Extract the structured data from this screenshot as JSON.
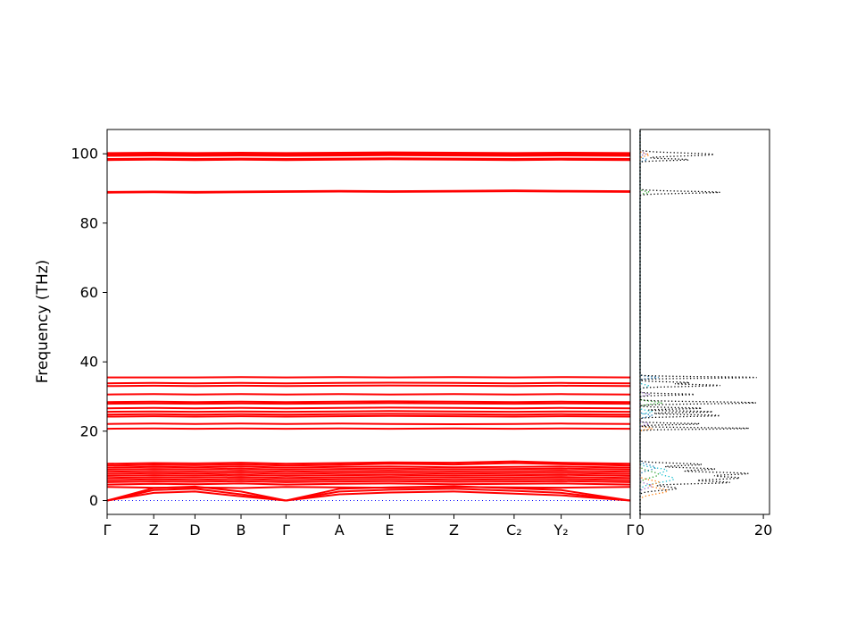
{
  "chart_data": {
    "type": "line",
    "title": "",
    "ylabel": "Frequency (THz)",
    "ylim": [
      -4,
      107
    ],
    "yticks": [
      0,
      20,
      40,
      60,
      80,
      100
    ],
    "band_panel": {
      "x_positions": [
        0,
        0.089,
        0.168,
        0.256,
        0.342,
        0.444,
        0.54,
        0.663,
        0.778,
        0.868,
        1.0
      ],
      "x_tick_labels": [
        "Γ",
        "Z",
        "D",
        "B",
        "Γ",
        "A",
        "E",
        "Z",
        "C₂",
        "Y₂",
        "Γ"
      ],
      "band_color": "#ff0000",
      "zero_line": {
        "y": 0,
        "color": "#0000ff",
        "style": "dotted"
      },
      "bands": [
        [
          0,
          2.2,
          2.6,
          1.2,
          0,
          1.8,
          2.3,
          2.6,
          2.0,
          1.5,
          0
        ],
        [
          0,
          3.0,
          3.4,
          1.8,
          0,
          2.6,
          3.1,
          3.4,
          2.8,
          2.2,
          0
        ],
        [
          0,
          3.6,
          4.0,
          2.6,
          0,
          3.4,
          3.8,
          4.1,
          3.5,
          3.0,
          0
        ],
        [
          3.9,
          3.7,
          3.8,
          3.6,
          3.9,
          3.8,
          3.7,
          3.9,
          3.8,
          3.7,
          3.9
        ],
        [
          4.6,
          4.8,
          4.7,
          4.9,
          4.6,
          4.8,
          4.9,
          4.7,
          4.8,
          4.9,
          4.6
        ],
        [
          5.3,
          5.5,
          5.4,
          5.6,
          5.3,
          5.5,
          5.6,
          5.4,
          5.5,
          5.6,
          5.3
        ],
        [
          5.9,
          6.1,
          6.0,
          6.2,
          5.9,
          6.1,
          6.2,
          6.0,
          6.1,
          6.2,
          5.9
        ],
        [
          6.5,
          6.7,
          6.6,
          6.8,
          6.5,
          6.7,
          6.8,
          6.6,
          6.7,
          6.8,
          6.5
        ],
        [
          7.1,
          7.3,
          7.2,
          7.4,
          7.1,
          7.3,
          7.4,
          7.2,
          7.3,
          7.4,
          7.1
        ],
        [
          7.7,
          7.9,
          7.8,
          8.0,
          7.7,
          7.9,
          8.0,
          7.8,
          7.9,
          8.0,
          7.7
        ],
        [
          8.3,
          8.5,
          8.4,
          8.6,
          8.3,
          8.5,
          8.6,
          8.4,
          8.5,
          8.6,
          8.3
        ],
        [
          8.9,
          9.1,
          9.0,
          9.2,
          8.9,
          9.1,
          9.2,
          9.0,
          9.1,
          9.2,
          8.9
        ],
        [
          9.5,
          9.7,
          9.6,
          9.8,
          9.5,
          9.7,
          9.8,
          9.6,
          9.7,
          9.8,
          9.5
        ],
        [
          10.1,
          10.3,
          10.2,
          10.4,
          10.1,
          10.3,
          10.6,
          10.4,
          10.8,
          10.5,
          10.1
        ],
        [
          10.6,
          10.8,
          10.7,
          10.9,
          10.6,
          10.8,
          11.0,
          10.9,
          11.3,
          10.9,
          10.6
        ],
        [
          20.7,
          20.8,
          20.7,
          20.8,
          20.7,
          20.8,
          20.7,
          20.8,
          20.7,
          20.8,
          20.7
        ],
        [
          22.1,
          22.2,
          22.1,
          22.2,
          22.1,
          22.2,
          22.1,
          22.0,
          22.1,
          22.2,
          22.1
        ],
        [
          24.2,
          24.3,
          24.2,
          24.3,
          24.2,
          24.3,
          24.4,
          24.3,
          24.2,
          24.3,
          24.2
        ],
        [
          24.8,
          24.9,
          24.8,
          24.9,
          24.8,
          24.9,
          25.0,
          24.9,
          24.8,
          24.9,
          24.8
        ],
        [
          25.6,
          25.7,
          25.6,
          25.7,
          25.6,
          25.7,
          25.8,
          25.7,
          25.6,
          25.7,
          25.6
        ],
        [
          26.6,
          26.7,
          26.6,
          26.7,
          26.6,
          26.7,
          26.8,
          26.7,
          26.6,
          26.7,
          26.6
        ],
        [
          27.9,
          28.0,
          27.9,
          28.0,
          27.9,
          28.0,
          28.1,
          28.0,
          27.9,
          28.0,
          27.9
        ],
        [
          28.4,
          28.5,
          28.4,
          28.5,
          28.4,
          28.5,
          28.6,
          28.5,
          28.4,
          28.5,
          28.4
        ],
        [
          30.6,
          30.7,
          30.6,
          30.7,
          30.6,
          30.7,
          30.6,
          30.7,
          30.6,
          30.7,
          30.6
        ],
        [
          33.0,
          33.1,
          33.0,
          33.1,
          33.0,
          33.1,
          33.2,
          33.1,
          33.0,
          33.1,
          33.0
        ],
        [
          33.8,
          33.9,
          33.8,
          33.9,
          33.8,
          33.9,
          34.0,
          33.9,
          33.8,
          33.9,
          33.8
        ],
        [
          35.5,
          35.5,
          35.5,
          35.6,
          35.5,
          35.6,
          35.5,
          35.6,
          35.5,
          35.6,
          35.5
        ],
        [
          88.8,
          88.9,
          88.8,
          88.9,
          89.0,
          89.1,
          89.0,
          89.1,
          89.2,
          89.1,
          89.0
        ],
        [
          89.0,
          89.1,
          89.0,
          89.1,
          89.2,
          89.3,
          89.2,
          89.3,
          89.4,
          89.3,
          89.2
        ],
        [
          98.2,
          98.3,
          98.2,
          98.3,
          98.2,
          98.3,
          98.4,
          98.3,
          98.2,
          98.3,
          98.2
        ],
        [
          98.5,
          98.6,
          98.5,
          98.6,
          98.5,
          98.6,
          98.7,
          98.6,
          98.5,
          98.6,
          98.5
        ],
        [
          99.4,
          99.5,
          99.4,
          99.5,
          99.4,
          99.5,
          99.6,
          99.5,
          99.4,
          99.5,
          99.4
        ],
        [
          99.7,
          99.8,
          99.7,
          99.8,
          99.7,
          99.8,
          99.9,
          99.8,
          99.7,
          99.8,
          99.7
        ],
        [
          100.0,
          100.1,
          100.0,
          100.1,
          100.0,
          100.1,
          100.2,
          100.1,
          100.0,
          100.1,
          100.0
        ],
        [
          100.2,
          100.3,
          100.2,
          100.3,
          100.2,
          100.3,
          100.4,
          100.3,
          100.2,
          100.3,
          100.2
        ]
      ]
    },
    "dos_panel": {
      "xlim": [
        0,
        21
      ],
      "xticks": [
        0,
        20
      ],
      "series": [
        {
          "name": "partial-cyan",
          "color": "#17becf",
          "style": "dotted",
          "peaks": [
            {
              "c": 6.3,
              "w": 1.5,
              "h": 5.5
            },
            {
              "c": 8.8,
              "w": 0.9,
              "h": 4
            },
            {
              "c": 25.6,
              "w": 0.5,
              "h": 2
            },
            {
              "c": 33.0,
              "w": 0.5,
              "h": 1.5
            }
          ]
        },
        {
          "name": "partial-orange",
          "color": "#ff7f0e",
          "style": "dotted",
          "peaks": [
            {
              "c": 2.8,
              "w": 1.2,
              "h": 4.5
            },
            {
              "c": 5.3,
              "w": 0.8,
              "h": 3
            },
            {
              "c": 20.8,
              "w": 0.4,
              "h": 2
            },
            {
              "c": 99.7,
              "w": 0.5,
              "h": 1.5
            }
          ]
        },
        {
          "name": "partial-green",
          "color": "#2ca02c",
          "style": "dotted",
          "peaks": [
            {
              "c": 7.5,
              "w": 1.2,
              "h": 3
            },
            {
              "c": 28.2,
              "w": 0.5,
              "h": 3.5
            },
            {
              "c": 88.9,
              "w": 0.4,
              "h": 1.5
            }
          ]
        },
        {
          "name": "partial-blue",
          "color": "#1f77b4",
          "style": "dotted",
          "peaks": [
            {
              "c": 9.5,
              "w": 1.0,
              "h": 2.5
            },
            {
              "c": 24.5,
              "w": 0.5,
              "h": 2
            },
            {
              "c": 35.5,
              "w": 0.35,
              "h": 3
            },
            {
              "c": 98.3,
              "w": 0.4,
              "h": 1.2
            }
          ]
        },
        {
          "name": "partial-purple",
          "color": "#9467bd",
          "style": "dotted",
          "peaks": [
            {
              "c": 4.2,
              "w": 0.8,
              "h": 2
            },
            {
              "c": 22.1,
              "w": 0.4,
              "h": 1.5
            },
            {
              "c": 30.6,
              "w": 0.4,
              "h": 1.5
            },
            {
              "c": 100.0,
              "w": 0.4,
              "h": 1
            }
          ]
        },
        {
          "name": "total",
          "color": "#000000",
          "style": "dotted",
          "peaks": [
            {
              "c": 3.5,
              "w": 0.8,
              "h": 6
            },
            {
              "c": 5.2,
              "w": 0.5,
              "h": 14
            },
            {
              "c": 6.5,
              "w": 0.7,
              "h": 16
            },
            {
              "c": 7.8,
              "w": 0.6,
              "h": 17
            },
            {
              "c": 9.1,
              "w": 0.5,
              "h": 12
            },
            {
              "c": 10.4,
              "w": 0.5,
              "h": 10
            },
            {
              "c": 20.8,
              "w": 0.3,
              "h": 18
            },
            {
              "c": 22.1,
              "w": 0.3,
              "h": 10
            },
            {
              "c": 24.5,
              "w": 0.4,
              "h": 13
            },
            {
              "c": 25.6,
              "w": 0.3,
              "h": 12
            },
            {
              "c": 26.6,
              "w": 0.3,
              "h": 10
            },
            {
              "c": 28.2,
              "w": 0.4,
              "h": 19
            },
            {
              "c": 30.6,
              "w": 0.3,
              "h": 9
            },
            {
              "c": 33.2,
              "w": 0.4,
              "h": 13
            },
            {
              "c": 34.0,
              "w": 0.3,
              "h": 8
            },
            {
              "c": 35.5,
              "w": 0.3,
              "h": 19
            },
            {
              "c": 88.9,
              "w": 0.4,
              "h": 13
            },
            {
              "c": 98.3,
              "w": 0.35,
              "h": 8
            },
            {
              "c": 99.8,
              "w": 0.6,
              "h": 12
            }
          ]
        }
      ]
    }
  }
}
